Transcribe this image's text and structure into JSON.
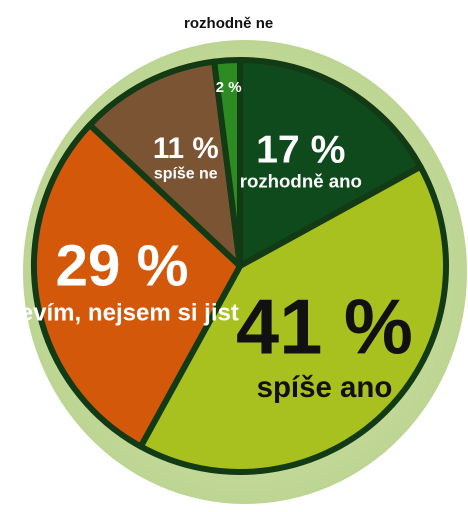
{
  "chart_data": {
    "type": "pie",
    "categories": [
      "rozhodně ano",
      "spíše ano",
      "nevím, nejsem si jist",
      "spíše ne",
      "rozhodně ne"
    ],
    "values": [
      17,
      41,
      29,
      11,
      2
    ],
    "value_labels": [
      "17 %",
      "41 %",
      "29 %",
      "11 %",
      "2 %"
    ],
    "colors": [
      "#0f4a1c",
      "#a9c11e",
      "#d4580a",
      "#7b5434",
      "#2c8c22"
    ]
  }
}
